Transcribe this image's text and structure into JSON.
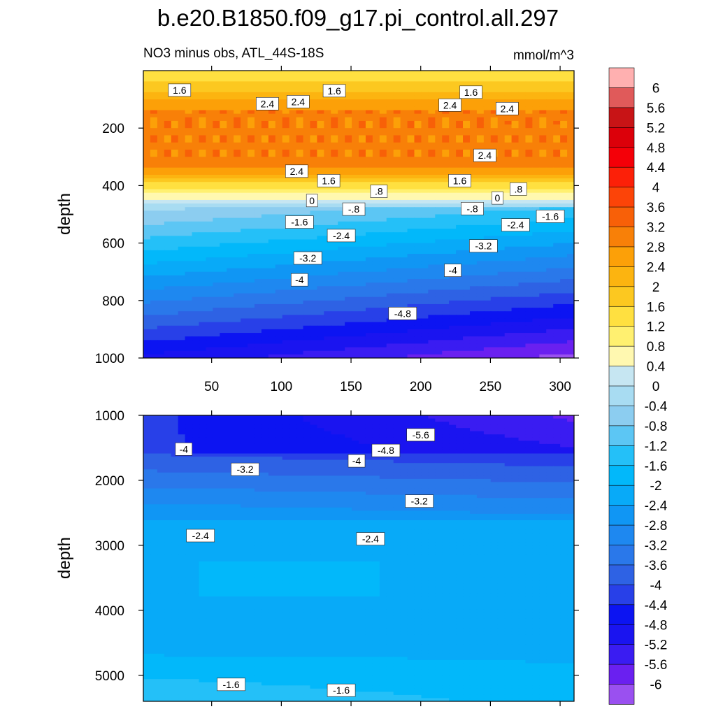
{
  "chart_data": {
    "type": "heatmap",
    "title": "b.e20.B1850.f09_g17.pi_control.all.297",
    "subtitle": "NO3 minus obs, ATL_44S-18S",
    "units": "mmol/m^3",
    "x_ticks": [
      50,
      100,
      150,
      200,
      250,
      300
    ],
    "xlim": [
      1,
      310
    ],
    "colorbar": {
      "levels": [
        "-6",
        "-5.6",
        "-5.2",
        "-4.8",
        "-4.4",
        "-4",
        "-3.6",
        "-3.2",
        "-2.8",
        "-2.4",
        "-2",
        "-1.6",
        "-1.2",
        "-0.8",
        "-0.4",
        "0",
        "0.4",
        "0.8",
        "1.2",
        "1.6",
        "2",
        "2.4",
        "2.8",
        "3.2",
        "3.6",
        "4",
        "4.4",
        "4.8",
        "5.2",
        "5.6",
        "6"
      ],
      "colors": [
        "#9a50f0",
        "#6a20f0",
        "#3a1cf2",
        "#1a14f0",
        "#0c14f2",
        "#2840e8",
        "#2e62e4",
        "#2a78ea",
        "#1e88f0",
        "#1096f4",
        "#08aaf8",
        "#02b8fa",
        "#24c0f8",
        "#5cc6f4",
        "#8ccdf0",
        "#a8dcf2",
        "#c6e6f2",
        "#fff8b0",
        "#fff070",
        "#ffe040",
        "#fcc820",
        "#fcb410",
        "#fca008",
        "#f88008",
        "#f86008",
        "#fc4408",
        "#fc2008",
        "#f40008",
        "#dc000a",
        "#c81416",
        "#e05a5a",
        "#ffb0b0"
      ]
    },
    "panels": [
      {
        "name": "upper",
        "ylabel": "depth",
        "ylim": [
          0,
          1000
        ],
        "y_ticks": [
          200,
          400,
          600,
          800,
          1000
        ],
        "contour_labels": [
          {
            "text": "1.6",
            "x": 27,
            "d": 68
          },
          {
            "text": "2.4",
            "x": 90,
            "d": 115
          },
          {
            "text": "2.4",
            "x": 112,
            "d": 108
          },
          {
            "text": "1.6",
            "x": 138,
            "d": 70
          },
          {
            "text": "2.4",
            "x": 221,
            "d": 120
          },
          {
            "text": "1.6",
            "x": 236,
            "d": 75
          },
          {
            "text": "2.4",
            "x": 262,
            "d": 132
          },
          {
            "text": "2.4",
            "x": 246,
            "d": 295
          },
          {
            "text": "2.4",
            "x": 111,
            "d": 350
          },
          {
            "text": "1.6",
            "x": 134,
            "d": 383
          },
          {
            "text": "1.6",
            "x": 228,
            "d": 383
          },
          {
            "text": ".8",
            "x": 170,
            "d": 420
          },
          {
            "text": ".8",
            "x": 270,
            "d": 412
          },
          {
            "text": "0",
            "x": 122,
            "d": 452
          },
          {
            "text": "0",
            "x": 255,
            "d": 443
          },
          {
            "text": "-.8",
            "x": 152,
            "d": 482
          },
          {
            "text": "-.8",
            "x": 237,
            "d": 480
          },
          {
            "text": "-1.6",
            "x": 113,
            "d": 527
          },
          {
            "text": "-1.6",
            "x": 293,
            "d": 507
          },
          {
            "text": "-2.4",
            "x": 143,
            "d": 574
          },
          {
            "text": "-2.4",
            "x": 268,
            "d": 537
          },
          {
            "text": "-3.2",
            "x": 119,
            "d": 652
          },
          {
            "text": "-3.2",
            "x": 245,
            "d": 610
          },
          {
            "text": "-4",
            "x": 113,
            "d": 728
          },
          {
            "text": "-4",
            "x": 223,
            "d": 695
          },
          {
            "text": "-4.8",
            "x": 187,
            "d": 845
          }
        ]
      },
      {
        "name": "lower",
        "ylabel": "depth",
        "ylim": [
          1000,
          5400
        ],
        "y_ticks": [
          1000,
          2000,
          3000,
          4000,
          5000
        ],
        "contour_labels": [
          {
            "text": "-5.6",
            "x": 200,
            "d": 1300
          },
          {
            "text": "-4.8",
            "x": 175,
            "d": 1540
          },
          {
            "text": "-4",
            "x": 30,
            "d": 1520
          },
          {
            "text": "-4",
            "x": 154,
            "d": 1700
          },
          {
            "text": "-3.2",
            "x": 74,
            "d": 1830
          },
          {
            "text": "-3.2",
            "x": 199,
            "d": 2320
          },
          {
            "text": "-2.4",
            "x": 42,
            "d": 2850
          },
          {
            "text": "-2.4",
            "x": 164,
            "d": 2900
          },
          {
            "text": "-1.6",
            "x": 64,
            "d": 5140
          },
          {
            "text": "-1.6",
            "x": 143,
            "d": 5230
          }
        ]
      }
    ]
  }
}
